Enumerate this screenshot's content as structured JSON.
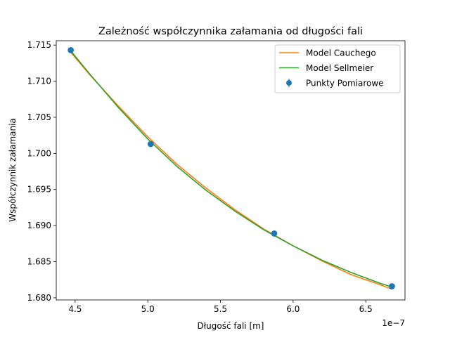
{
  "chart_data": {
    "type": "line",
    "title": "Zależność współczynnika załamania od długości fali",
    "xlabel": "Długość fali [m]",
    "ylabel": "Współczynnik załamania",
    "x_offset_label": "1e−7",
    "x_scale": 1e-07,
    "xlim": [
      4.37,
      6.77
    ],
    "ylim": [
      1.6797,
      1.7156
    ],
    "x_ticks": [
      4.5,
      5.0,
      5.5,
      6.0,
      6.5
    ],
    "x_tick_labels": [
      "4.5",
      "5.0",
      "5.5",
      "6.0",
      "6.5"
    ],
    "y_ticks": [
      1.68,
      1.685,
      1.69,
      1.695,
      1.7,
      1.705,
      1.71,
      1.715
    ],
    "y_tick_labels": [
      "1.680",
      "1.685",
      "1.690",
      "1.695",
      "1.700",
      "1.705",
      "1.710",
      "1.715"
    ],
    "grid": false,
    "legend_position": "top-right",
    "series": [
      {
        "name": "Model Cauchego",
        "kind": "line",
        "color": "#ff7f0e",
        "x": [
          4.47,
          4.6,
          4.8,
          5.0,
          5.2,
          5.4,
          5.6,
          5.8,
          6.0,
          6.2,
          6.4,
          6.6,
          6.68
        ],
        "y": [
          1.714,
          1.7109,
          1.7065,
          1.7023,
          1.6985,
          1.6952,
          1.6922,
          1.6895,
          1.6872,
          1.6851,
          1.6832,
          1.6818,
          1.6812
        ]
      },
      {
        "name": "Model Sellmeier",
        "kind": "line",
        "color": "#2ca02c",
        "x": [
          4.47,
          4.6,
          4.8,
          5.0,
          5.2,
          5.4,
          5.6,
          5.8,
          6.0,
          6.2,
          6.4,
          6.6,
          6.68
        ],
        "y": [
          1.7142,
          1.711,
          1.7063,
          1.702,
          1.6982,
          1.6949,
          1.692,
          1.6894,
          1.6872,
          1.6852,
          1.6835,
          1.682,
          1.6815
        ]
      },
      {
        "name": "Punkty Pomiarowe",
        "kind": "scatter",
        "color": "#1f77b4",
        "x": [
          4.47,
          5.02,
          5.87,
          6.68
        ],
        "y": [
          1.7143,
          1.7013,
          1.6889,
          1.6816
        ]
      }
    ]
  }
}
